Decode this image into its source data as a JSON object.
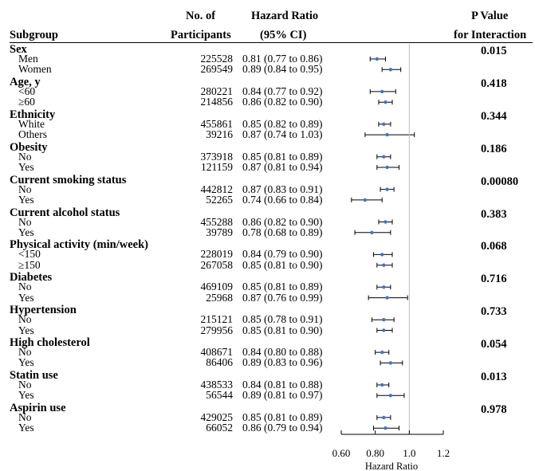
{
  "headers": {
    "subgroup": "Subgroup",
    "participants_1": "No. of",
    "participants_2": "Participants",
    "hr_1": "Hazard Ratio",
    "hr_2": "(95% CI)",
    "p_1": "P Value",
    "p_2": "for Interaction"
  },
  "chart_data": {
    "type": "forest",
    "xlabel": "Hazard Ratio",
    "xlim": [
      0.6,
      1.2
    ],
    "xticks": [
      0.6,
      0.8,
      1.0,
      1.2
    ],
    "xtick_labels": [
      "0.60",
      "0.80",
      "1.0",
      "1.2"
    ],
    "reference_line": 1.0,
    "point_color": "#4472c4",
    "groups": [
      {
        "name": "Sex",
        "p": "0.015",
        "rows": [
          {
            "label": "Men",
            "n": "225528",
            "hr": 0.81,
            "lo": 0.77,
            "hi": 0.86,
            "text": "0.81 (0.77 to 0.86)"
          },
          {
            "label": "Women",
            "n": "269549",
            "hr": 0.89,
            "lo": 0.84,
            "hi": 0.95,
            "text": "0.89 (0.84 to 0.95)"
          }
        ]
      },
      {
        "name": "Age, y",
        "p": "0.418",
        "rows": [
          {
            "label": "<60",
            "n": "280221",
            "hr": 0.84,
            "lo": 0.77,
            "hi": 0.92,
            "text": "0.84 (0.77 to 0.92)"
          },
          {
            "label": "≥60",
            "n": "214856",
            "hr": 0.86,
            "lo": 0.82,
            "hi": 0.9,
            "text": "0.86 (0.82 to 0.90)"
          }
        ]
      },
      {
        "name": "Ethnicity",
        "p": "0.344",
        "rows": [
          {
            "label": "White",
            "n": "455861",
            "hr": 0.85,
            "lo": 0.82,
            "hi": 0.89,
            "text": "0.85 (0.82 to 0.89)"
          },
          {
            "label": "Others",
            "n": "39216",
            "hr": 0.87,
            "lo": 0.74,
            "hi": 1.03,
            "text": "0.87 (0.74 to 1.03)"
          }
        ]
      },
      {
        "name": "Obesity",
        "p": "0.186",
        "rows": [
          {
            "label": "No",
            "n": "373918",
            "hr": 0.85,
            "lo": 0.81,
            "hi": 0.89,
            "text": "0.85 (0.81 to 0.89)"
          },
          {
            "label": "Yes",
            "n": "121159",
            "hr": 0.87,
            "lo": 0.81,
            "hi": 0.94,
            "text": "0.87 (0.81 to 0.94)"
          }
        ]
      },
      {
        "name": "Current smoking status",
        "p": "0.00080",
        "rows": [
          {
            "label": "No",
            "n": "442812",
            "hr": 0.87,
            "lo": 0.83,
            "hi": 0.91,
            "text": "0.87 (0.83 to 0.91)"
          },
          {
            "label": "Yes",
            "n": "52265",
            "hr": 0.74,
            "lo": 0.66,
            "hi": 0.84,
            "text": "0.74 (0.66 to 0.84)"
          }
        ]
      },
      {
        "name": "Current alcohol status",
        "p": "0.383",
        "rows": [
          {
            "label": "No",
            "n": "455288",
            "hr": 0.86,
            "lo": 0.82,
            "hi": 0.9,
            "text": "0.86 (0.82 to 0.90)"
          },
          {
            "label": "Yes",
            "n": "39789",
            "hr": 0.78,
            "lo": 0.68,
            "hi": 0.89,
            "text": "0.78 (0.68 to 0.89)"
          }
        ]
      },
      {
        "name": "Physical activity (min/week)",
        "p": "0.068",
        "rows": [
          {
            "label": "<150",
            "n": "228019",
            "hr": 0.84,
            "lo": 0.79,
            "hi": 0.9,
            "text": "0.84 (0.79 to 0.90)"
          },
          {
            "label": "≥150",
            "n": "267058",
            "hr": 0.85,
            "lo": 0.81,
            "hi": 0.9,
            "text": "0.85 (0.81 to 0.90)"
          }
        ]
      },
      {
        "name": "Diabetes",
        "p": "0.716",
        "rows": [
          {
            "label": "No",
            "n": "469109",
            "hr": 0.85,
            "lo": 0.81,
            "hi": 0.89,
            "text": "0.85 (0.81 to 0.89)"
          },
          {
            "label": "Yes",
            "n": "25968",
            "hr": 0.87,
            "lo": 0.76,
            "hi": 0.99,
            "text": "0.87 (0.76 to 0.99)"
          }
        ]
      },
      {
        "name": "Hypertension",
        "p": "0.733",
        "rows": [
          {
            "label": "No",
            "n": "215121",
            "hr": 0.85,
            "lo": 0.78,
            "hi": 0.91,
            "text": "0.85 (0.78 to 0.91)"
          },
          {
            "label": "Yes",
            "n": "279956",
            "hr": 0.85,
            "lo": 0.81,
            "hi": 0.9,
            "text": "0.85 (0.81 to 0.90)"
          }
        ]
      },
      {
        "name": "High cholesterol",
        "p": "0.054",
        "rows": [
          {
            "label": "No",
            "n": "408671",
            "hr": 0.84,
            "lo": 0.8,
            "hi": 0.88,
            "text": "0.84 (0.80 to 0.88)"
          },
          {
            "label": "Yes",
            "n": "86406",
            "hr": 0.89,
            "lo": 0.83,
            "hi": 0.96,
            "text": "0.89 (0.83 to 0.96)"
          }
        ]
      },
      {
        "name": "Statin use",
        "p": "0.013",
        "rows": [
          {
            "label": "No",
            "n": "438533",
            "hr": 0.84,
            "lo": 0.81,
            "hi": 0.88,
            "text": "0.84 (0.81 to 0.88)"
          },
          {
            "label": "Yes",
            "n": "56544",
            "hr": 0.89,
            "lo": 0.81,
            "hi": 0.97,
            "text": "0.89 (0.81 to 0.97)"
          }
        ]
      },
      {
        "name": "Aspirin use",
        "p": "0.978",
        "rows": [
          {
            "label": "No",
            "n": "429025",
            "hr": 0.85,
            "lo": 0.81,
            "hi": 0.89,
            "text": "0.85 (0.81 to 0.89)"
          },
          {
            "label": "Yes",
            "n": "66052",
            "hr": 0.86,
            "lo": 0.79,
            "hi": 0.94,
            "text": "0.86 (0.79 to 0.94)"
          }
        ]
      }
    ]
  }
}
